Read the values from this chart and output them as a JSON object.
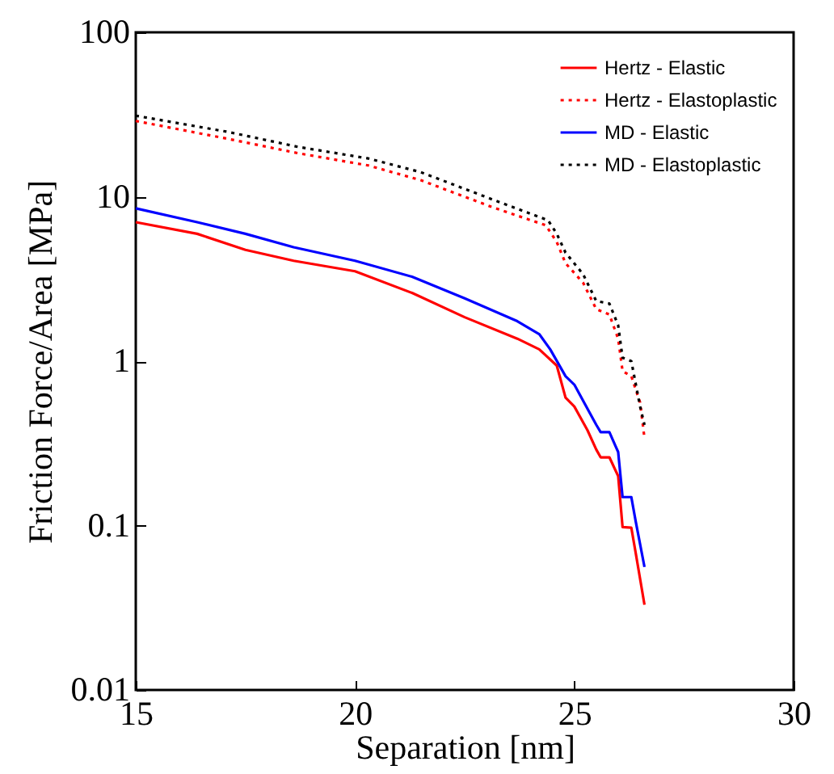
{
  "chart_data": {
    "type": "line",
    "xlabel": "Separation [nm]",
    "ylabel": "Friction Force/Area [MPa]",
    "log": "y",
    "xlim": [
      15,
      30
    ],
    "xticks": [
      15,
      20,
      25,
      30
    ],
    "ylim": [
      0.01,
      100
    ],
    "yticks": [
      0.01,
      0.1,
      1,
      10,
      100
    ],
    "grid": false,
    "legend": "top right",
    "marker": "none",
    "series": [
      {
        "name": "Hertz - Elastic",
        "color": "#ff0000",
        "line_style": "solid",
        "x": [
          15,
          16.4,
          17.5,
          18.6,
          20,
          21.3,
          22.5,
          23.7,
          24.2,
          24.6,
          24.8,
          25,
          25.3,
          25.5,
          25.6,
          25.8,
          26,
          26.1,
          26.3,
          26.4,
          26.6
        ],
        "values": [
          7.0,
          5.95,
          4.75,
          4.08,
          3.52,
          2.6,
          1.85,
          1.37,
          1.18,
          0.94,
          0.6,
          0.53,
          0.38,
          0.29,
          0.26,
          0.26,
          0.2,
          0.098,
          0.097,
          0.068,
          0.033
        ]
      },
      {
        "name": "Hertz - Elastoplastic",
        "color": "#ff0000",
        "line_style": "dotted",
        "x": [
          15,
          17.1,
          18.7,
          20.3,
          21.5,
          23.1,
          24.35,
          24.6,
          24.8,
          25.2,
          25.5,
          25.8,
          26,
          26.1,
          26.3,
          26.5,
          26.6
        ],
        "values": [
          28.9,
          22.5,
          18.4,
          15.5,
          12.6,
          8.7,
          6.7,
          5.3,
          3.94,
          3.0,
          2.07,
          1.92,
          1.37,
          0.87,
          0.81,
          0.56,
          0.34
        ]
      },
      {
        "name": "MD - Elastic",
        "color": "#0000ff",
        "line_style": "solid",
        "x": [
          15,
          16.4,
          17.5,
          18.6,
          20,
          21.3,
          22.5,
          23.7,
          24.2,
          24.45,
          24.8,
          25,
          25.5,
          25.6,
          25.8,
          26,
          26.1,
          26.3,
          26.4,
          26.6
        ],
        "values": [
          8.5,
          7.0,
          5.95,
          4.93,
          4.08,
          3.26,
          2.41,
          1.75,
          1.46,
          1.18,
          0.81,
          0.72,
          0.41,
          0.37,
          0.37,
          0.28,
          0.149,
          0.149,
          0.106,
          0.056
        ]
      },
      {
        "name": "MD - Elastoplastic",
        "color": "#000000",
        "line_style": "dotted",
        "x": [
          15,
          17.1,
          18.7,
          20.3,
          21.5,
          23.1,
          24.4,
          24.6,
          24.8,
          25.2,
          25.5,
          25.8,
          26,
          26.1,
          26.3,
          26.5,
          26.6
        ],
        "values": [
          31.1,
          24.8,
          20.1,
          17.1,
          14.1,
          9.7,
          7.2,
          5.95,
          4.57,
          3.38,
          2.32,
          2.24,
          1.65,
          1.05,
          1.0,
          0.53,
          0.41
        ]
      }
    ]
  }
}
